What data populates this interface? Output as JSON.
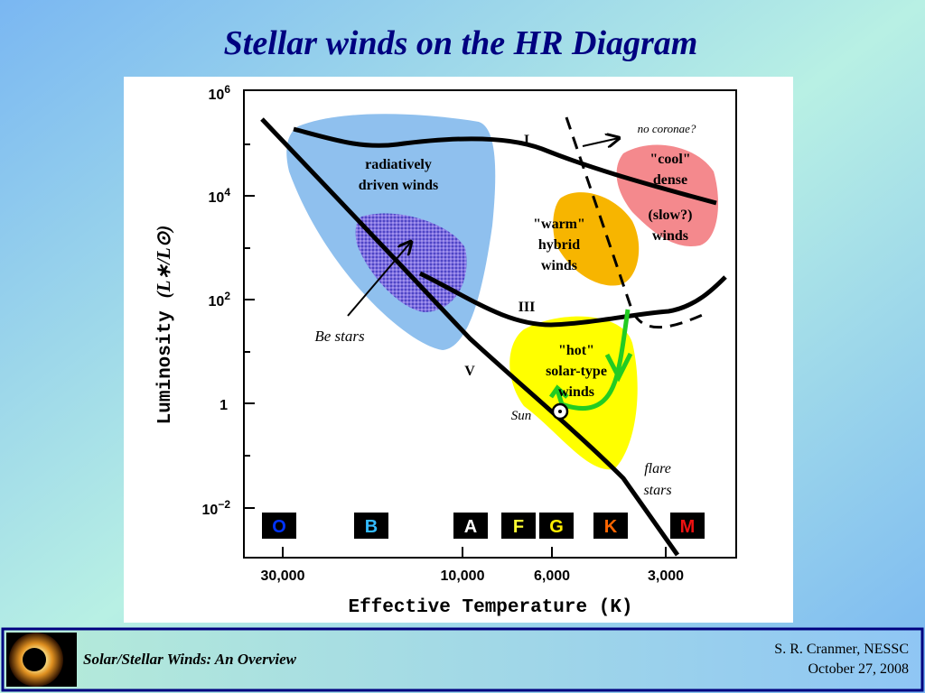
{
  "title": "Stellar winds on the HR Diagram",
  "axes": {
    "y_label": "Luminosity",
    "y_label_units": "(L∗/L⊙)",
    "x_label": "Effective Temperature  (K)",
    "y_ticks": [
      {
        "base": "10",
        "exp": "6"
      },
      {
        "base": "10",
        "exp": "4"
      },
      {
        "base": "10",
        "exp": "2"
      },
      {
        "base": "1",
        "exp": ""
      },
      {
        "base": "10",
        "exp": "−2"
      }
    ],
    "x_ticks": [
      "30,000",
      "10,000",
      "6,000",
      "3,000"
    ]
  },
  "regions": [
    {
      "label": [
        "radiatively",
        "driven winds"
      ]
    },
    {
      "label": [
        "\"warm\"",
        "hybrid",
        "winds"
      ]
    },
    {
      "label": [
        "\"cool\"",
        "dense"
      ]
    },
    {
      "label": [
        "(slow?)",
        "winds"
      ]
    },
    {
      "label": [
        "\"hot\"",
        "solar-type",
        "winds"
      ]
    }
  ],
  "annotations": {
    "no_coronae": "no coronae?",
    "be_stars": "Be stars",
    "sun": "Sun",
    "flare_stars": [
      "flare",
      "stars"
    ],
    "class_I": "I",
    "class_III": "III",
    "class_V": "V"
  },
  "spectral_classes": [
    "O",
    "B",
    "A",
    "F",
    "G",
    "K",
    "M"
  ],
  "footer": {
    "title": "Solar/Stellar Winds: An Overview",
    "author": "S. R. Cranmer, NESSC",
    "date": "October 27, 2008"
  }
}
